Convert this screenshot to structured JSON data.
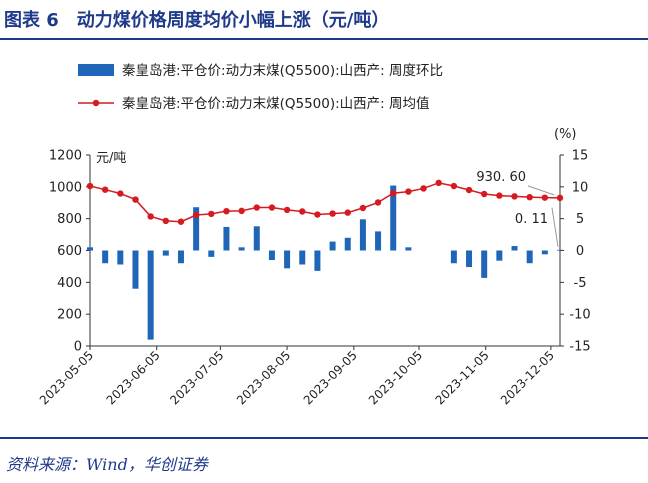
{
  "header": {
    "title": "图表 6　动力煤价格周度均价小幅上涨（元/吨）"
  },
  "source": "资料来源：Wind，华创证券",
  "chart_data": {
    "type": "bar+line",
    "legend": {
      "placement": "top-left",
      "bar_label": "秦皇岛港:平仓价:动力末煤(Q5500):山西产: 周度环比",
      "line_label": "秦皇岛港:平仓价:动力末煤(Q5500):山西产: 周均值"
    },
    "y_left": {
      "unit": "元/吨",
      "ylim": [
        0,
        1200
      ],
      "ticks": [
        "0",
        "200",
        "400",
        "600",
        "800",
        "1000",
        "1200"
      ]
    },
    "y_right": {
      "unit": "(%)",
      "ylim": [
        -15,
        15
      ],
      "ticks": [
        "-15",
        "-10",
        "-5",
        "0",
        "5",
        "10",
        "15"
      ]
    },
    "x_tick_labels": [
      "2023-05-05",
      "2023-06-05",
      "2023-07-05",
      "2023-08-05",
      "2023-09-05",
      "2023-10-05",
      "2023-11-05",
      "2023-12-05"
    ],
    "x_tick_weeks": [
      0,
      4.4,
      8.6,
      13.0,
      17.4,
      21.7,
      26.1,
      30.4
    ],
    "bar_color": "#1f66b8",
    "line_color": "#d71920",
    "weeks": [
      0,
      1,
      2,
      3,
      4,
      5,
      6,
      7,
      8,
      9,
      10,
      11,
      12,
      13,
      14,
      15,
      16,
      17,
      18,
      19,
      20,
      21,
      22,
      23,
      24,
      25,
      26,
      27,
      28,
      29,
      30,
      31
    ],
    "line_values": [
      1005,
      982,
      958,
      920,
      814,
      786,
      781,
      823,
      830,
      847,
      849,
      870,
      870,
      855,
      845,
      826,
      832,
      838,
      867,
      902,
      960,
      970,
      990,
      1025,
      1005,
      980,
      955,
      945,
      940,
      935,
      932,
      930.6
    ],
    "bar_values": [
      0.5,
      -2.0,
      -2.2,
      -6.0,
      -14.0,
      -0.8,
      -2.0,
      6.8,
      -1.0,
      3.7,
      0.5,
      3.8,
      -1.5,
      -2.8,
      -2.2,
      -3.2,
      1.4,
      2.0,
      4.9,
      3.0,
      10.2,
      0.5,
      null,
      null,
      -2.0,
      -2.6,
      -4.3,
      -1.6,
      0.7,
      -2.0,
      -0.6,
      0.11
    ],
    "annotations": [
      {
        "text": "930. 60",
        "series": "line",
        "week": 31
      },
      {
        "text": "0. 11",
        "series": "bar",
        "week": 31
      }
    ]
  }
}
